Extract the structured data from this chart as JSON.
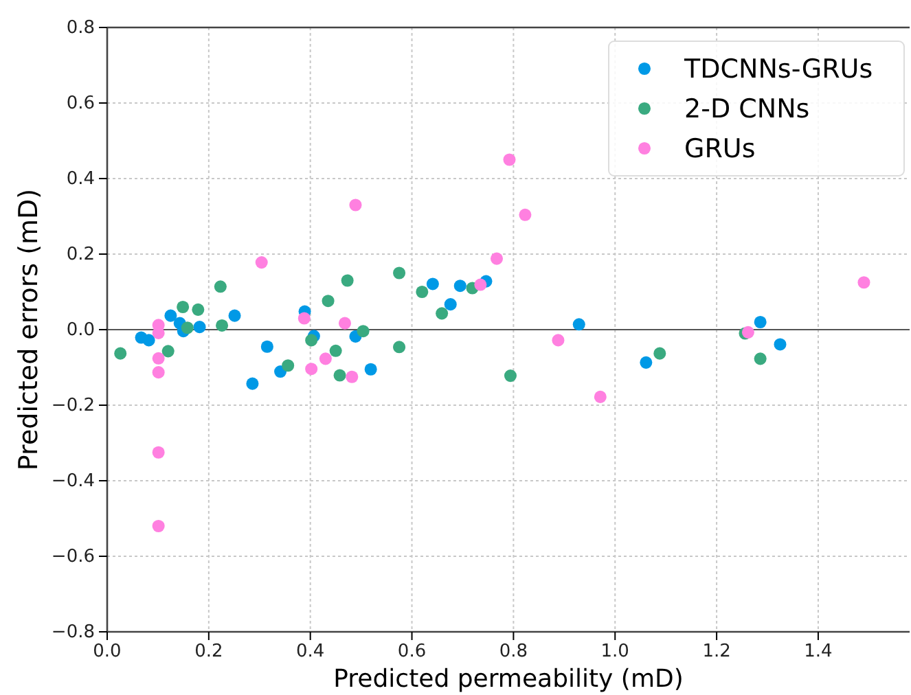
{
  "chart_data": {
    "type": "scatter",
    "xlabel": "Predicted permeability (mD)",
    "ylabel": "Predicted errors (mD)",
    "xlim": [
      0,
      1.58
    ],
    "ylim": [
      -0.8,
      0.8
    ],
    "xticks": [
      {
        "value": 0,
        "label": "0.0"
      },
      0.2,
      0.4,
      0.6,
      0.8,
      {
        "value": 1,
        "label": "1.0"
      },
      1.2,
      1.4
    ],
    "yticks": [
      {
        "value": -0.8,
        "label": "−0.8"
      },
      {
        "value": -0.6,
        "label": "−0.6"
      },
      {
        "value": -0.4,
        "label": "−0.4"
      },
      {
        "value": -0.2,
        "label": "−0.2"
      },
      {
        "value": 0,
        "label": "0.0"
      },
      0.2,
      0.4,
      0.6,
      0.8
    ],
    "grid": true,
    "legend": "top right",
    "marker": "circle",
    "ref_lines": [
      {
        "axis": "y",
        "value": 0,
        "label": null,
        "color": "#555555",
        "line_style": "solid"
      }
    ],
    "series": [
      {
        "name": "TDCNNs-GRUs",
        "color": "#0099e6",
        "x": [
          0.067,
          0.082,
          0.125,
          0.143,
          0.15,
          0.182,
          0.251,
          0.315,
          0.286,
          0.341,
          0.389,
          0.407,
          0.489,
          0.519,
          0.641,
          0.695,
          0.746,
          0.676,
          0.929,
          1.061,
          1.286,
          1.325
        ],
        "values": [
          -0.021,
          -0.028,
          0.037,
          0.017,
          -0.004,
          0.007,
          0.037,
          -0.045,
          -0.143,
          -0.111,
          0.048,
          -0.017,
          -0.018,
          -0.105,
          0.121,
          0.116,
          0.128,
          0.067,
          0.014,
          -0.087,
          0.02,
          -0.039
        ]
      },
      {
        "name": "2-D CNNs",
        "color": "#3aaa80",
        "x": [
          0.026,
          0.12,
          0.149,
          0.158,
          0.179,
          0.223,
          0.226,
          0.356,
          0.402,
          0.435,
          0.45,
          0.458,
          0.473,
          0.504,
          0.575,
          0.62,
          0.719,
          0.659,
          0.575,
          0.794,
          1.088,
          1.256,
          1.286
        ],
        "values": [
          -0.063,
          -0.057,
          0.06,
          0.005,
          0.053,
          0.114,
          0.011,
          -0.095,
          -0.028,
          0.076,
          -0.056,
          -0.121,
          0.13,
          -0.004,
          0.15,
          0.1,
          0.11,
          0.043,
          -0.046,
          -0.122,
          -0.063,
          -0.01,
          -0.077
        ]
      },
      {
        "name": "GRUs",
        "color": "#ff80e0",
        "x": [
          0.101,
          0.101,
          0.101,
          0.101,
          0.101,
          0.101,
          0.304,
          0.388,
          0.402,
          0.43,
          0.468,
          0.482,
          0.489,
          0.792,
          0.823,
          0.767,
          0.735,
          0.888,
          0.971,
          1.262,
          1.49
        ],
        "values": [
          0.012,
          -0.009,
          -0.076,
          -0.113,
          -0.325,
          -0.52,
          0.178,
          0.03,
          -0.104,
          -0.077,
          0.017,
          -0.125,
          0.33,
          0.45,
          0.304,
          0.188,
          0.119,
          -0.028,
          -0.178,
          -0.007,
          0.125
        ]
      }
    ]
  }
}
